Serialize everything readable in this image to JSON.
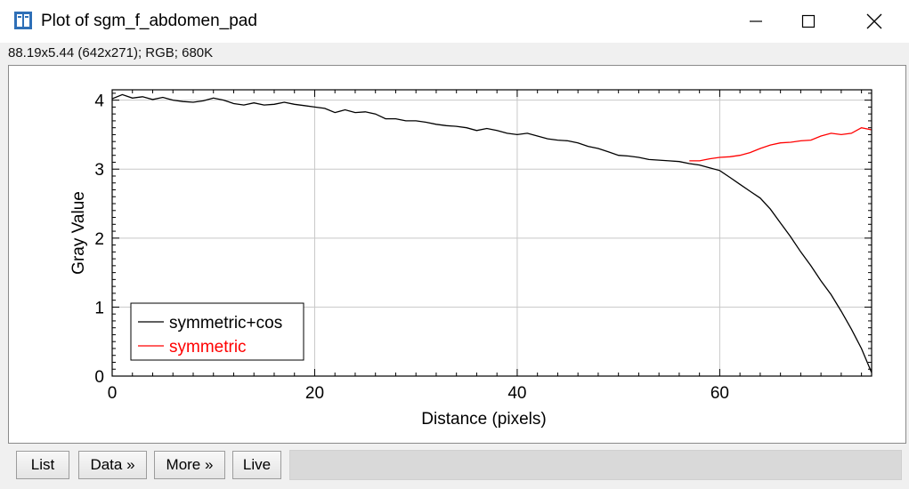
{
  "window": {
    "title": "Plot of sgm_f_abdomen_pad",
    "info": "88.19x5.44   (642x271); RGB; 680K",
    "icons": [
      "imagej-app-icon",
      "minimize-icon",
      "maximize-icon",
      "close-icon"
    ]
  },
  "buttons": {
    "list": "List",
    "data": "Data »",
    "more": "More »",
    "live": "Live"
  },
  "chart_data": {
    "type": "line",
    "title": "",
    "xlabel": "Distance (pixels)",
    "ylabel": "Gray Value",
    "xlim": [
      0,
      75
    ],
    "ylim": [
      0,
      4.15
    ],
    "xticks": [
      "0",
      "20",
      "40",
      "60"
    ],
    "yticks": [
      "0",
      "1",
      "2",
      "3",
      "4"
    ],
    "grid": true,
    "legend_position": "bottom-left",
    "series": [
      {
        "name": "symmetric+cos",
        "color": "#000000",
        "points": [
          [
            0,
            4.02
          ],
          [
            1,
            4.08
          ],
          [
            2,
            4.03
          ],
          [
            3,
            4.05
          ],
          [
            4,
            4.01
          ],
          [
            5,
            4.04
          ],
          [
            6,
            4.0
          ],
          [
            7,
            3.98
          ],
          [
            8,
            3.97
          ],
          [
            9,
            3.99
          ],
          [
            10,
            4.03
          ],
          [
            11,
            4.0
          ],
          [
            12,
            3.95
          ],
          [
            13,
            3.93
          ],
          [
            14,
            3.96
          ],
          [
            15,
            3.93
          ],
          [
            16,
            3.94
          ],
          [
            17,
            3.97
          ],
          [
            18,
            3.94
          ],
          [
            19,
            3.92
          ],
          [
            20,
            3.9
          ],
          [
            21,
            3.88
          ],
          [
            22,
            3.82
          ],
          [
            23,
            3.86
          ],
          [
            24,
            3.82
          ],
          [
            25,
            3.83
          ],
          [
            26,
            3.8
          ],
          [
            27,
            3.73
          ],
          [
            28,
            3.73
          ],
          [
            29,
            3.7
          ],
          [
            30,
            3.7
          ],
          [
            31,
            3.68
          ],
          [
            32,
            3.65
          ],
          [
            33,
            3.63
          ],
          [
            34,
            3.62
          ],
          [
            35,
            3.6
          ],
          [
            36,
            3.56
          ],
          [
            37,
            3.59
          ],
          [
            38,
            3.56
          ],
          [
            39,
            3.52
          ],
          [
            40,
            3.5
          ],
          [
            41,
            3.52
          ],
          [
            42,
            3.48
          ],
          [
            43,
            3.44
          ],
          [
            44,
            3.42
          ],
          [
            45,
            3.41
          ],
          [
            46,
            3.38
          ],
          [
            47,
            3.33
          ],
          [
            48,
            3.3
          ],
          [
            49,
            3.25
          ],
          [
            50,
            3.2
          ],
          [
            51,
            3.19
          ],
          [
            52,
            3.17
          ],
          [
            53,
            3.14
          ],
          [
            54,
            3.13
          ],
          [
            55,
            3.12
          ],
          [
            56,
            3.11
          ],
          [
            57,
            3.08
          ],
          [
            58,
            3.06
          ],
          [
            59,
            3.02
          ],
          [
            60,
            2.98
          ],
          [
            61,
            2.88
          ],
          [
            62,
            2.78
          ],
          [
            63,
            2.68
          ],
          [
            64,
            2.58
          ],
          [
            65,
            2.42
          ],
          [
            66,
            2.22
          ],
          [
            67,
            2.02
          ],
          [
            68,
            1.8
          ],
          [
            69,
            1.6
          ],
          [
            70,
            1.38
          ],
          [
            71,
            1.18
          ],
          [
            72,
            0.94
          ],
          [
            73,
            0.68
          ],
          [
            74,
            0.4
          ],
          [
            75,
            0.05
          ]
        ]
      },
      {
        "name": "symmetric",
        "color": "#ff0000",
        "points": [
          [
            57,
            3.12
          ],
          [
            58,
            3.12
          ],
          [
            59,
            3.15
          ],
          [
            60,
            3.17
          ],
          [
            61,
            3.18
          ],
          [
            62,
            3.2
          ],
          [
            63,
            3.24
          ],
          [
            64,
            3.3
          ],
          [
            65,
            3.35
          ],
          [
            66,
            3.38
          ],
          [
            67,
            3.39
          ],
          [
            68,
            3.41
          ],
          [
            69,
            3.42
          ],
          [
            70,
            3.48
          ],
          [
            71,
            3.52
          ],
          [
            72,
            3.5
          ],
          [
            73,
            3.52
          ],
          [
            74,
            3.6
          ],
          [
            75,
            3.57
          ]
        ]
      }
    ]
  }
}
